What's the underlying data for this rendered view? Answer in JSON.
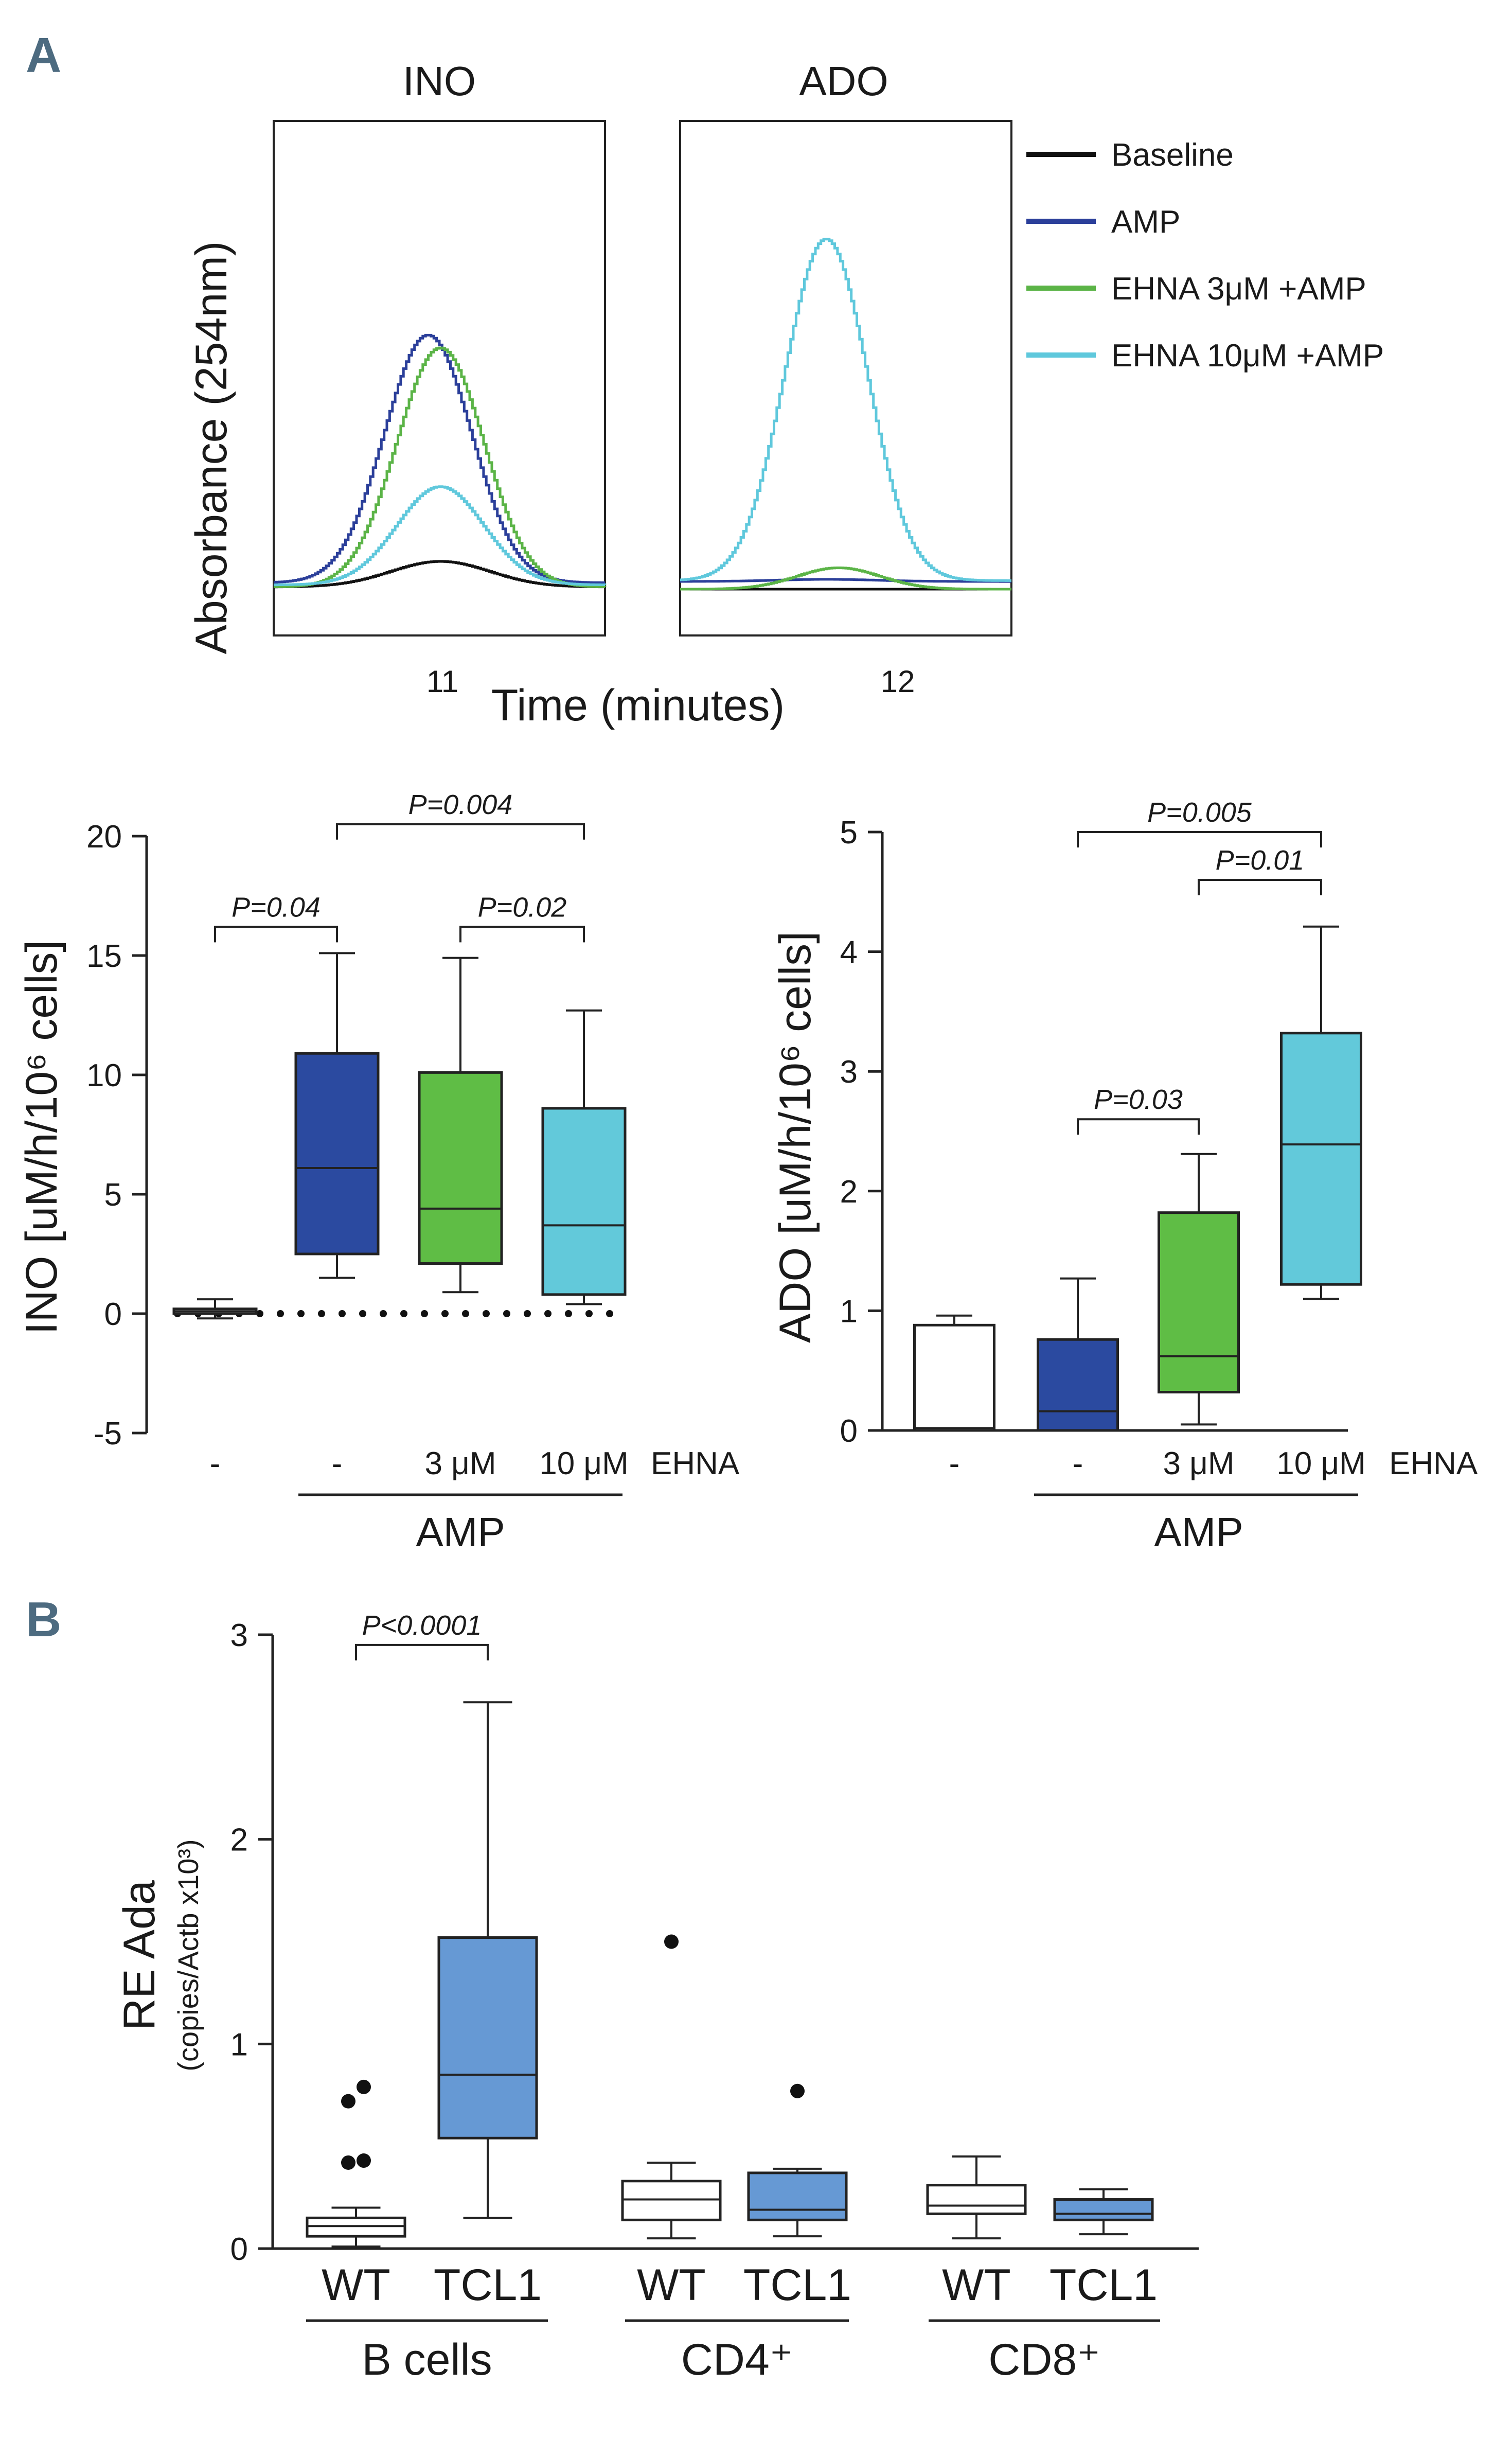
{
  "figure": {
    "panel_a_label": "A",
    "panel_b_label": "B"
  },
  "chart_data": [
    {
      "id": "chrom_ino",
      "type": "line",
      "title": "INO",
      "xlabel": "Time (minutes)",
      "ylabel": "Absorbance (254nm)",
      "xtick_label": "11",
      "x_range": [
        10.6,
        11.4
      ],
      "y_range": [
        0,
        100
      ],
      "series": [
        {
          "name": "Baseline",
          "color": "#111111",
          "peak_x": 11.0,
          "peak_height": 6,
          "base": 0.5,
          "width": 0.12
        },
        {
          "name": "AMP",
          "color": "#2b3f9a",
          "peak_x": 10.97,
          "peak_height": 58,
          "base": 1.5,
          "width": 0.105
        },
        {
          "name": "EHNA 3μM +AMP",
          "color": "#5bb447",
          "peak_x": 11.0,
          "peak_height": 56,
          "base": 0.5,
          "width": 0.105
        },
        {
          "name": "EHNA 10μM +AMP",
          "color": "#5fc8dc",
          "peak_x": 11.0,
          "peak_height": 23,
          "base": 1.0,
          "width": 0.105
        }
      ]
    },
    {
      "id": "chrom_ado",
      "type": "line",
      "title": "ADO",
      "xtick_label": "12",
      "x_range": [
        11.6,
        12.4
      ],
      "y_range": [
        0,
        100
      ],
      "series": [
        {
          "name": "Baseline",
          "color": "#111111",
          "peak_x": 12.0,
          "peak_height": 0,
          "base": 0.0,
          "width": 0.12
        },
        {
          "name": "AMP",
          "color": "#2b3f9a",
          "peak_x": 11.95,
          "peak_height": 0.5,
          "base": 1.8,
          "width": 0.12
        },
        {
          "name": "EHNA 3μM +AMP",
          "color": "#5bb447",
          "peak_x": 11.98,
          "peak_height": 5,
          "base": 0.0,
          "width": 0.1
        },
        {
          "name": "EHNA 10μM +AMP",
          "color": "#5fc8dc",
          "peak_x": 11.95,
          "peak_height": 80,
          "base": 2.0,
          "width": 0.1
        }
      ],
      "legend": [
        "Baseline",
        "AMP",
        "EHNA  3μM +AMP",
        "EHNA  10μM +AMP"
      ]
    },
    {
      "id": "box_ino",
      "type": "box",
      "ylabel": "INO [uM/h/10⁶ cells]",
      "ylim": [
        -5,
        20
      ],
      "yticks": [
        "-5",
        "0",
        "5",
        "10",
        "15",
        "20"
      ],
      "categories": [
        "-",
        "-",
        "3 μM",
        "10 μM"
      ],
      "cat_suffix": "EHNA",
      "group_label": "AMP",
      "boxes": [
        {
          "fill": "#ffffff",
          "min": -0.2,
          "q1": 0.0,
          "median": 0.1,
          "q3": 0.2,
          "max": 0.6
        },
        {
          "fill": "#2b4aa0",
          "min": 1.5,
          "q1": 2.5,
          "median": 6.1,
          "q3": 10.9,
          "max": 15.1
        },
        {
          "fill": "#5fbd45",
          "min": 0.9,
          "q1": 2.1,
          "median": 4.4,
          "q3": 10.1,
          "max": 14.9
        },
        {
          "fill": "#62c9da",
          "min": 0.4,
          "q1": 0.8,
          "median": 3.7,
          "q3": 8.6,
          "max": 12.7
        }
      ],
      "zero_line": "dotted",
      "brackets": [
        {
          "from": 0,
          "to": 1,
          "y": 16.2,
          "label": "P=0.04"
        },
        {
          "from": 2,
          "to": 3,
          "y": 16.2,
          "label": "P=0.02"
        },
        {
          "from": 1,
          "to": 3,
          "y": 20.5,
          "label": "P=0.004"
        }
      ]
    },
    {
      "id": "box_ado",
      "type": "box",
      "ylabel": "ADO [uM/h/10⁶ cells]",
      "ylim": [
        0,
        5
      ],
      "yticks": [
        "0",
        "1",
        "2",
        "3",
        "4",
        "5"
      ],
      "categories": [
        "-",
        "-",
        "3 μM",
        "10 μM"
      ],
      "cat_suffix": "EHNA",
      "group_label": "AMP",
      "boxes": [
        {
          "fill": "#ffffff",
          "min": 0.0,
          "q1": 0.0,
          "median": 0.02,
          "q3": 0.88,
          "max": 0.96
        },
        {
          "fill": "#2b4aa0",
          "min": 0.0,
          "q1": 0.0,
          "median": 0.16,
          "q3": 0.76,
          "max": 1.27
        },
        {
          "fill": "#5fbd45",
          "min": 0.05,
          "q1": 0.32,
          "median": 0.62,
          "q3": 1.82,
          "max": 2.31
        },
        {
          "fill": "#62c9da",
          "min": 1.1,
          "q1": 1.22,
          "median": 2.39,
          "q3": 3.32,
          "max": 4.21
        }
      ],
      "brackets": [
        {
          "from": 1,
          "to": 2,
          "y": 2.6,
          "label": "P=0.03"
        },
        {
          "from": 2,
          "to": 3,
          "y": 4.6,
          "label": "P=0.01"
        },
        {
          "from": 1,
          "to": 3,
          "y": 5.0,
          "label": "P=0.005"
        }
      ]
    },
    {
      "id": "box_ada",
      "type": "box",
      "ylabel_main": "RE Ada",
      "ylabel_sub": "(copies/Actb x10³)",
      "ylim": [
        0,
        3
      ],
      "yticks": [
        "0",
        "1",
        "2",
        "3"
      ],
      "categories": [
        "WT",
        "TCL1",
        "WT",
        "TCL1",
        "WT",
        "TCL1"
      ],
      "groups": [
        "B cells",
        "CD4⁺",
        "CD8⁺"
      ],
      "boxes": [
        {
          "fill": "#ffffff",
          "min": 0.01,
          "q1": 0.06,
          "median": 0.11,
          "q3": 0.15,
          "max": 0.2,
          "outliers": [
            0.42,
            0.43,
            0.72,
            0.79
          ]
        },
        {
          "fill": "#6699d4",
          "min": 0.15,
          "q1": 0.54,
          "median": 0.85,
          "q3": 1.52,
          "max": 2.67,
          "outliers": []
        },
        {
          "fill": "#ffffff",
          "min": 0.05,
          "q1": 0.14,
          "median": 0.24,
          "q3": 0.33,
          "max": 0.42,
          "outliers": [
            1.5
          ]
        },
        {
          "fill": "#6699d4",
          "min": 0.06,
          "q1": 0.14,
          "median": 0.19,
          "q3": 0.37,
          "max": 0.39,
          "outliers": [
            0.77
          ]
        },
        {
          "fill": "#ffffff",
          "min": 0.05,
          "q1": 0.17,
          "median": 0.21,
          "q3": 0.31,
          "max": 0.45,
          "outliers": []
        },
        {
          "fill": "#6699d4",
          "min": 0.07,
          "q1": 0.14,
          "median": 0.17,
          "q3": 0.24,
          "max": 0.29,
          "outliers": []
        }
      ],
      "brackets": [
        {
          "from": 0,
          "to": 1,
          "y": 2.95,
          "label": "P<0.0001"
        }
      ]
    }
  ]
}
